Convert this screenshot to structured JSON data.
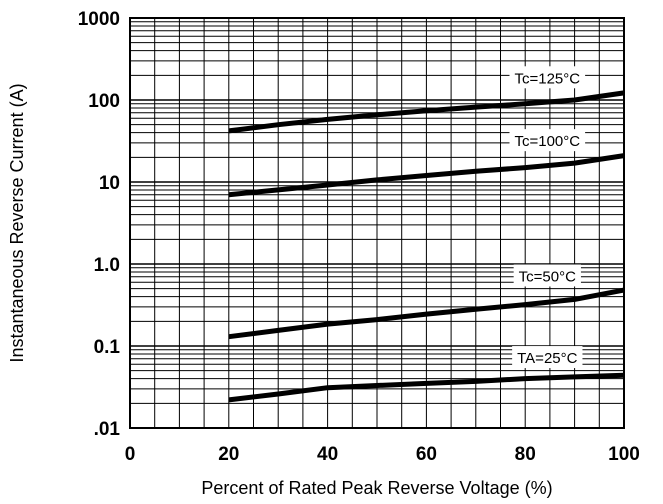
{
  "chart_data": {
    "type": "line",
    "xlabel": "Percent of Rated Peak Reverse Voltage (%)",
    "ylabel": "Instantaneous Reverse Current (A)",
    "y_scale": "log",
    "xlim": [
      0,
      100
    ],
    "ylim": [
      0.01,
      1000
    ],
    "grid": true,
    "x_ticks": [
      0,
      20,
      40,
      60,
      80,
      100
    ],
    "x_tick_labels": [
      "0",
      "20",
      "40",
      "60",
      "80",
      "100"
    ],
    "y_ticks": [
      0.01,
      0.1,
      1,
      10,
      100,
      1000
    ],
    "y_tick_labels": [
      ".01",
      "0.1",
      "1.0",
      "10",
      "100",
      "1000"
    ],
    "series": [
      {
        "name": "Tc=125°C",
        "x": [
          20,
          30,
          40,
          50,
          60,
          70,
          80,
          90,
          100
        ],
        "y": [
          42,
          50,
          58,
          66,
          74,
          82,
          90,
          100,
          122
        ]
      },
      {
        "name": "Tc=100°C",
        "x": [
          20,
          30,
          40,
          50,
          60,
          70,
          80,
          90,
          100
        ],
        "y": [
          7,
          8,
          9.2,
          10.6,
          12,
          13.5,
          15,
          17,
          21
        ]
      },
      {
        "name": "Tc=50°C",
        "x": [
          20,
          30,
          40,
          50,
          60,
          70,
          80,
          90,
          100
        ],
        "y": [
          0.13,
          0.155,
          0.185,
          0.21,
          0.245,
          0.28,
          0.32,
          0.37,
          0.48
        ]
      },
      {
        "name": "TA=25°C",
        "x": [
          20,
          30,
          40,
          50,
          60,
          70,
          80,
          90,
          100
        ],
        "y": [
          0.022,
          0.026,
          0.031,
          0.033,
          0.035,
          0.037,
          0.04,
          0.042,
          0.044
        ]
      }
    ],
    "annotation_x": [
      95,
      95,
      95,
      95
    ]
  }
}
